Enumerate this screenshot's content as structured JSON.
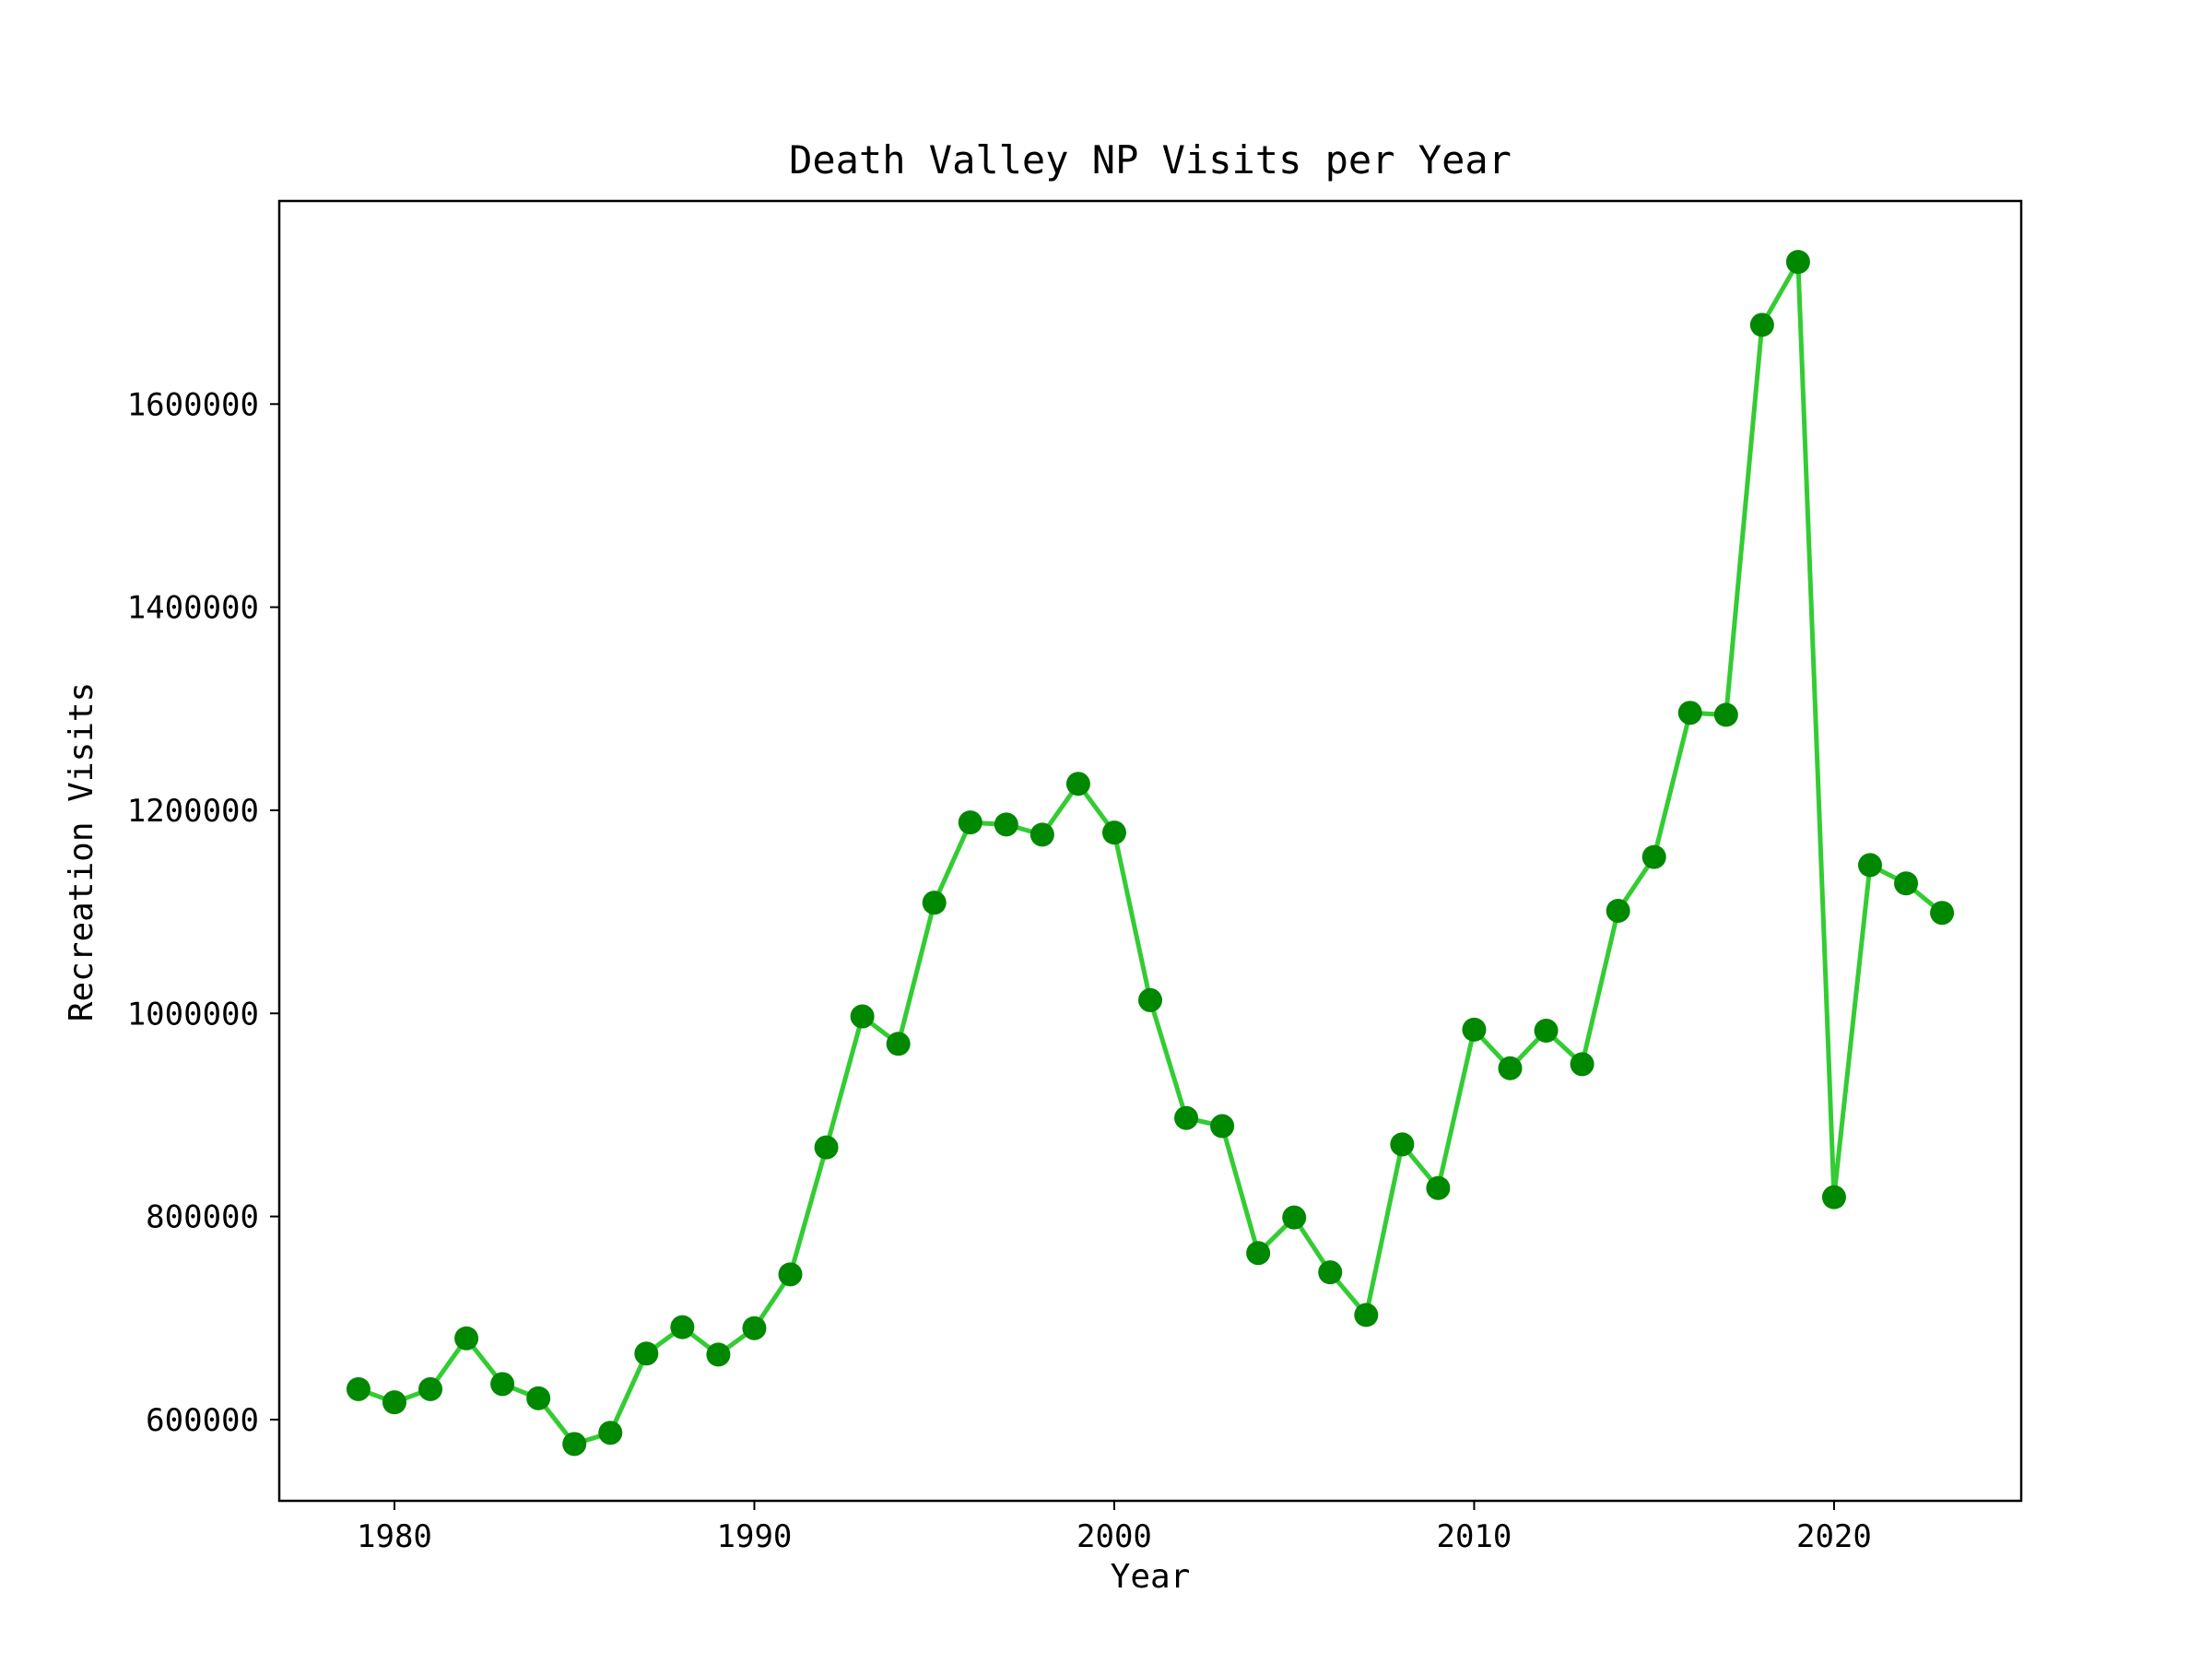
{
  "chart_data": {
    "type": "line",
    "title": "Death Valley NP Visits per Year",
    "xlabel": "Year",
    "ylabel": "Recreation Visits",
    "xlim": [
      1976.8,
      2025.2
    ],
    "ylim": [
      520000,
      1800000
    ],
    "xticks": [
      1980,
      1990,
      2000,
      2010,
      2020
    ],
    "yticks": [
      600000,
      800000,
      1000000,
      1200000,
      1400000,
      1600000
    ],
    "grid": false,
    "legend": "none",
    "line_color": "#33cc33",
    "marker_color": "#008800",
    "series": [
      {
        "x": [
          1979,
          1980,
          1981,
          1982,
          1983,
          1984,
          1985,
          1986,
          1987,
          1988,
          1989,
          1990,
          1991,
          1992,
          1993,
          1994,
          1995,
          1996,
          1997,
          1998,
          1999,
          2000,
          2001,
          2002,
          2003,
          2004,
          2005,
          2006,
          2007,
          2008,
          2009,
          2010,
          2011,
          2012,
          2013,
          2014,
          2015,
          2016,
          2017,
          2018,
          2019,
          2020,
          2021,
          2022,
          2023
        ],
        "values": [
          630000,
          617000,
          630000,
          680000,
          635000,
          621000,
          576000,
          587000,
          665000,
          691000,
          664000,
          690000,
          743000,
          868000,
          997000,
          970000,
          1109000,
          1188000,
          1186000,
          1176000,
          1226000,
          1178000,
          1013000,
          897000,
          889000,
          764000,
          799000,
          745000,
          703000,
          871000,
          828000,
          984000,
          946000,
          983000,
          950000,
          1101000,
          1154000,
          1296000,
          1294000,
          1678000,
          1740000,
          819000,
          1146000,
          1128000,
          1099000
        ]
      }
    ]
  }
}
